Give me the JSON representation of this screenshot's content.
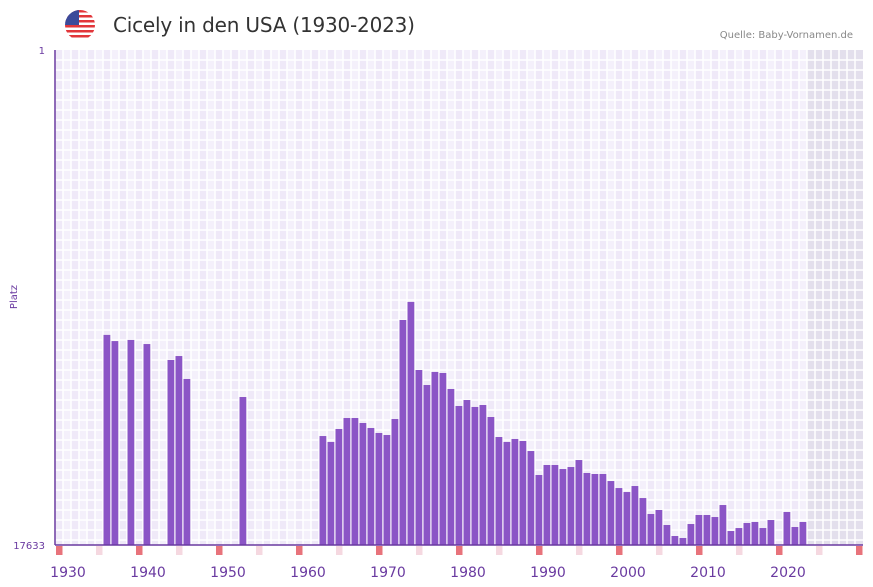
{
  "header": {
    "title": "Cicely in den USA (1930-2023)",
    "source": "Quelle: Baby-Vornamen.de",
    "flag_icon": "us-flag-icon"
  },
  "colors": {
    "bar": "#8b55c6",
    "axis": "#6a3aa0",
    "marker_strong": "#e8737b",
    "marker_light": "#f5d8e0",
    "grid_a": "#efe9f8",
    "grid_b": "#f4f0fb",
    "future": "#e3dfec"
  },
  "chart_data": {
    "type": "bar",
    "title": "Cicely in den USA (1930-2023)",
    "ylabel": "Platz",
    "xlabel": "",
    "y_scale": "log",
    "y_inverted": true,
    "ylim": [
      1,
      17633
    ],
    "y_ticks": [
      "1",
      "17633"
    ],
    "x_range": [
      1929,
      2029
    ],
    "x_ticks": [
      "1930",
      "1940",
      "1950",
      "1960",
      "1970",
      "1980",
      "1990",
      "2000",
      "2010",
      "2020"
    ],
    "future_from": 2023,
    "grid": true,
    "years": [
      1935,
      1936,
      1938,
      1940,
      1943,
      1944,
      1945,
      1952,
      1962,
      1963,
      1964,
      1965,
      1966,
      1967,
      1968,
      1969,
      1970,
      1971,
      1972,
      1973,
      1974,
      1975,
      1976,
      1977,
      1978,
      1979,
      1980,
      1981,
      1982,
      1983,
      1984,
      1985,
      1986,
      1987,
      1988,
      1989,
      1990,
      1991,
      1992,
      1993,
      1994,
      1995,
      1996,
      1997,
      1998,
      1999,
      2000,
      2001,
      2002,
      2003,
      2004,
      2005,
      2006,
      2007,
      2008,
      2009,
      2010,
      2011,
      2012,
      2013,
      2014,
      2015,
      2016,
      2017,
      2018,
      2020,
      2021,
      2022
    ],
    "ranks": [
      278,
      314,
      307,
      333,
      456,
      422,
      664,
      948,
      2049,
      2305,
      1783,
      1435,
      1435,
      1584,
      1748,
      1929,
      2008,
      1464,
      207,
      145,
      556,
      748,
      578,
      590,
      809,
      1132,
      1006,
      1154,
      1110,
      1407,
      2089,
      2305,
      2172,
      2260,
      2755,
      4425,
      3631,
      3631,
      3932,
      3779,
      3292,
      4252,
      4338,
      4338,
      4984,
      5723,
      6193,
      5500,
      6974,
      9558,
      8830,
      11880,
      14765,
      15355,
      11650,
      9750,
      9750,
      10146,
      8005,
      13377,
      12610,
      11420,
      11195,
      12610,
      10766,
      9190,
      12360,
      11195
    ]
  }
}
